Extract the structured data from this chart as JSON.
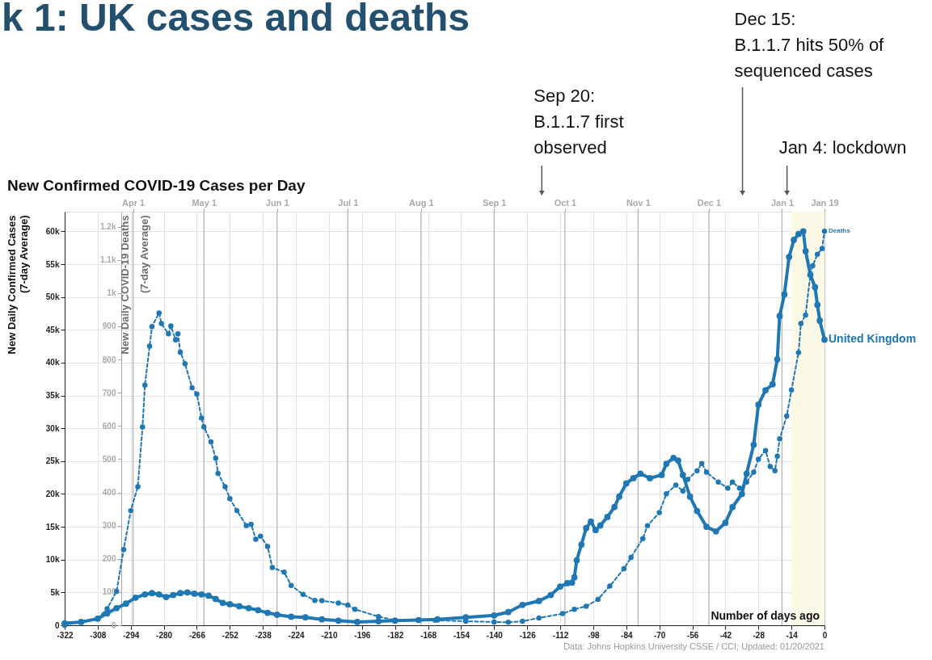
{
  "chart_data": {
    "type": "line",
    "title": "k 1: UK cases and deaths",
    "subtitle": "New Confirmed COVID-19 Cases per Day",
    "xlabel": "Number of days ago",
    "ylabel": "New Daily Confirmed Cases\n(7-day Average)",
    "y2label": "New Daily COVID-19 Deaths\n(7-day Average)",
    "xlim": [
      -322,
      0
    ],
    "xticks": [
      -322,
      -308,
      -294,
      -280,
      -266,
      -252,
      -238,
      -224,
      -210,
      -196,
      -182,
      -168,
      -154,
      -140,
      -126,
      -112,
      -98,
      -84,
      -70,
      -56,
      -42,
      -28,
      -14,
      0
    ],
    "x2lim": [
      "2020-03-03",
      "2021-01-19"
    ],
    "x2ticks": [
      {
        "value": "2020-04-01",
        "label": "Apr 1"
      },
      {
        "value": "2020-05-01",
        "label": "May 1"
      },
      {
        "value": "2020-06-01",
        "label": "Jun 1"
      },
      {
        "value": "2020-07-01",
        "label": "Jul 1"
      },
      {
        "value": "2020-08-01",
        "label": "Aug 1"
      },
      {
        "value": "2020-09-01",
        "label": "Sep 1"
      },
      {
        "value": "2020-10-01",
        "label": "Oct 1"
      },
      {
        "value": "2020-11-01",
        "label": "Nov 1"
      },
      {
        "value": "2020-12-01",
        "label": "Dec 1"
      },
      {
        "value": "2021-01-01",
        "label": "Jan 1"
      },
      {
        "value": "2021-01-19",
        "label": "Jan 19"
      }
    ],
    "ylim": [
      0,
      63000
    ],
    "yticks": [
      0,
      {
        "value": 5000,
        "label": "5k"
      },
      {
        "value": 10000,
        "label": "10k"
      },
      {
        "value": 15000,
        "label": "15k"
      },
      {
        "value": 20000,
        "label": "20k"
      },
      {
        "value": 25000,
        "label": "25k"
      },
      {
        "value": 30000,
        "label": "30k"
      },
      {
        "value": 35000,
        "label": "35k"
      },
      {
        "value": 40000,
        "label": "40k"
      },
      {
        "value": 45000,
        "label": "45k"
      },
      {
        "value": 50000,
        "label": "50k"
      },
      {
        "value": 55000,
        "label": "55k"
      },
      {
        "value": 60000,
        "label": "60k"
      }
    ],
    "y2lim": [
      0,
      1245
    ],
    "y2ticks": [
      0,
      100,
      200,
      300,
      400,
      500,
      600,
      700,
      800,
      900,
      {
        "value": 1000,
        "label": "1k"
      },
      {
        "value": 1100,
        "label": "1.1k"
      },
      {
        "value": 1200,
        "label": "1.2k"
      }
    ],
    "grid": true,
    "marker": "circle",
    "series": [
      {
        "name": "United Kingdom",
        "color": "#1f77b4",
        "line_style": "solid",
        "x": [
          -322,
          -315,
          -308,
          -304,
          -300,
          -296,
          -292,
          -288,
          -285,
          -282,
          -279,
          -276,
          -273,
          -270,
          -267,
          -264,
          -261,
          -258,
          -255,
          -252,
          -248,
          -244,
          -240,
          -236,
          -232,
          -226,
          -220,
          -213,
          -206,
          -198,
          -189,
          -182,
          -172,
          -164,
          -152,
          -140,
          -134,
          -128,
          -121,
          -116,
          -112,
          -109,
          -107,
          -106,
          -105,
          -103,
          -101,
          -99,
          -97,
          -95,
          -92,
          -89,
          -87,
          -84,
          -81,
          -78,
          -74,
          -69,
          -67,
          -64,
          -62,
          -60,
          -57,
          -54,
          -50,
          -46,
          -42,
          -39,
          -35,
          -33,
          -30,
          -28,
          -25,
          -22,
          -20,
          -19,
          -17,
          -15,
          -13,
          -11,
          -9,
          -8,
          -6,
          -4,
          -3,
          -2,
          0
        ],
        "values": [
          300,
          500,
          1000,
          1800,
          2600,
          3300,
          4200,
          4700,
          4900,
          4700,
          4300,
          4600,
          4900,
          5000,
          4800,
          4700,
          4500,
          4000,
          3400,
          3200,
          2900,
          2600,
          2300,
          1900,
          1600,
          1300,
          1200,
          900,
          700,
          500,
          600,
          700,
          800,
          900,
          1200,
          1500,
          2000,
          3100,
          3700,
          4600,
          5900,
          6400,
          6500,
          7300,
          9900,
          12300,
          14800,
          15800,
          14500,
          15200,
          16500,
          18000,
          19600,
          21600,
          22400,
          23100,
          22400,
          22900,
          24600,
          25500,
          25100,
          22900,
          19600,
          17400,
          15000,
          14300,
          15600,
          18000,
          20000,
          23100,
          27500,
          33600,
          35800,
          36700,
          40500,
          47100,
          50400,
          56100,
          58700,
          59600,
          60000,
          57000,
          53400,
          51500,
          48800,
          46400,
          43500
        ]
      },
      {
        "name": "Deaths",
        "color": "#1f77b4",
        "line_style": "dashed",
        "axis": "y2",
        "x": [
          -322,
          -308,
          -304,
          -300,
          -297,
          -294,
          -291,
          -289,
          -288,
          -286,
          -285,
          -282,
          -281,
          -278,
          -277,
          -275,
          -274,
          -273,
          -271,
          -268,
          -266,
          -264,
          -263,
          -260,
          -258,
          -257,
          -254,
          -252,
          -249,
          -245,
          -243,
          -241,
          -239,
          -236,
          -234,
          -229,
          -226,
          -221,
          -216,
          -213,
          -206,
          -202,
          -199,
          -189,
          -182,
          -165,
          -152,
          -140,
          -134,
          -128,
          -121,
          -111,
          -106,
          -101,
          -96,
          -91,
          -85,
          -82,
          -77,
          -75,
          -70,
          -67,
          -63,
          -60,
          -58,
          -54,
          -52,
          -50,
          -45,
          -41,
          -39,
          -36,
          -33,
          -30,
          -28,
          -25,
          -23,
          -21,
          -20,
          -19,
          -16,
          -14,
          -11,
          -10,
          -8,
          -6,
          -5,
          -3,
          -1,
          0
        ],
        "values": [
          0,
          20,
          50,
          102,
          228,
          345,
          417,
          597,
          723,
          840,
          899,
          940,
          908,
          877,
          901,
          859,
          877,
          822,
          787,
          715,
          696,
          624,
          597,
          552,
          503,
          457,
          417,
          381,
          345,
          300,
          304,
          259,
          268,
          237,
          174,
          160,
          120,
          93,
          75,
          74,
          67,
          61,
          48,
          26,
          15,
          15,
          12,
          10,
          9,
          12,
          22,
          35,
          48,
          57,
          78,
          118,
          170,
          204,
          261,
          300,
          339,
          396,
          422,
          404,
          439,
          465,
          487,
          461,
          431,
          413,
          431,
          413,
          431,
          461,
          500,
          526,
          478,
          465,
          509,
          561,
          630,
          708,
          821,
          908,
          934,
          1056,
          1082,
          1117,
          1134,
          1186
        ]
      }
    ],
    "bands": [
      {
        "axis": "x",
        "from": -14,
        "to": 0,
        "color": "#fcfae6"
      }
    ],
    "annotations": [
      "Sep 20:\nB.1.1.7 first\nobserved",
      "Dec 15:\nB.1.1.7 hits 50% of\nsequenced cases",
      "Jan 4: lockdown",
      "Data: Johns Hopkins University CSSE / CCI; Updated: 01/20/2021"
    ]
  }
}
